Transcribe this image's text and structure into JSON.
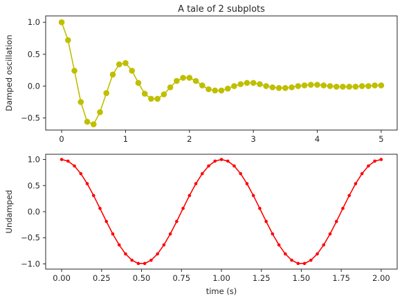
{
  "chart_data": [
    {
      "type": "line",
      "title": "A tale of 2 subplots",
      "xlabel": "",
      "ylabel": "Damped oscillation",
      "xlim": [
        -0.25,
        5.25
      ],
      "ylim": [
        -0.69,
        1.1
      ],
      "xticks": [
        0,
        1,
        2,
        3,
        4,
        5
      ],
      "xtick_labels": [
        "0",
        "1",
        "2",
        "3",
        "4",
        "5"
      ],
      "yticks": [
        -0.5,
        0.0,
        0.5,
        1.0
      ],
      "ytick_labels": [
        "−0.5",
        "0.0",
        "0.5",
        "1.0"
      ],
      "grid": false,
      "series": [
        {
          "color": "#bfbf00",
          "marker": "circle",
          "x": [
            0.0,
            0.1,
            0.2,
            0.3,
            0.4,
            0.5,
            0.6,
            0.7,
            0.8,
            0.9,
            1.0,
            1.1,
            1.2,
            1.3,
            1.4,
            1.5,
            1.6,
            1.7,
            1.8,
            1.9,
            2.0,
            2.1,
            2.2,
            2.3,
            2.4,
            2.5,
            2.6,
            2.7,
            2.8,
            2.9,
            3.0,
            3.1,
            3.2,
            3.3,
            3.4,
            3.5,
            3.6,
            3.7,
            3.8,
            3.9,
            4.0,
            4.1,
            4.2,
            4.3,
            4.4,
            4.5,
            4.6,
            4.7,
            4.8,
            4.9,
            5.0
          ],
          "y": [
            1.0,
            0.72,
            0.24,
            -0.25,
            -0.56,
            -0.6,
            -0.41,
            -0.11,
            0.18,
            0.34,
            0.36,
            0.24,
            0.05,
            -0.12,
            -0.2,
            -0.2,
            -0.13,
            -0.02,
            0.08,
            0.13,
            0.13,
            0.08,
            0.01,
            -0.05,
            -0.07,
            -0.07,
            -0.04,
            0.0,
            0.03,
            0.05,
            0.05,
            0.03,
            0.0,
            -0.02,
            -0.03,
            -0.03,
            -0.02,
            0.0,
            0.01,
            0.02,
            0.02,
            0.01,
            0.0,
            -0.01,
            -0.01,
            -0.01,
            -0.01,
            0.0,
            0.0,
            0.01,
            0.01
          ]
        }
      ]
    },
    {
      "type": "line",
      "title": "",
      "xlabel": "time (s)",
      "ylabel": "Undamped",
      "xlim": [
        -0.1,
        2.1
      ],
      "ylim": [
        -1.1,
        1.1
      ],
      "xticks": [
        0.0,
        0.25,
        0.5,
        0.75,
        1.0,
        1.25,
        1.5,
        1.75,
        2.0
      ],
      "xtick_labels": [
        "0.00",
        "0.25",
        "0.50",
        "0.75",
        "1.00",
        "1.25",
        "1.50",
        "1.75",
        "2.00"
      ],
      "yticks": [
        -1.0,
        -0.5,
        0.0,
        0.5,
        1.0
      ],
      "ytick_labels": [
        "−1.0",
        "−0.5",
        "0.0",
        "0.5",
        "1.0"
      ],
      "grid": false,
      "series": [
        {
          "color": "#ff0000",
          "marker": "dot",
          "x": [
            0.0,
            0.04,
            0.08,
            0.12,
            0.16,
            0.2,
            0.24,
            0.28,
            0.32,
            0.36,
            0.4,
            0.44,
            0.48,
            0.52,
            0.56,
            0.6,
            0.64,
            0.68,
            0.72,
            0.76,
            0.8,
            0.84,
            0.88,
            0.92,
            0.96,
            1.0,
            1.04,
            1.08,
            1.12,
            1.16,
            1.2,
            1.24,
            1.28,
            1.32,
            1.36,
            1.4,
            1.44,
            1.48,
            1.52,
            1.56,
            1.6,
            1.64,
            1.68,
            1.72,
            1.76,
            1.8,
            1.84,
            1.88,
            1.92,
            1.96,
            2.0
          ],
          "y": [
            1.0,
            0.969,
            0.876,
            0.729,
            0.536,
            0.309,
            0.063,
            -0.187,
            -0.426,
            -0.637,
            -0.809,
            -0.93,
            -0.992,
            -0.992,
            -0.93,
            -0.809,
            -0.637,
            -0.426,
            -0.187,
            0.063,
            0.309,
            0.536,
            0.729,
            0.876,
            0.969,
            1.0,
            0.969,
            0.876,
            0.729,
            0.536,
            0.309,
            0.063,
            -0.187,
            -0.426,
            -0.637,
            -0.809,
            -0.93,
            -0.992,
            -0.992,
            -0.93,
            -0.809,
            -0.637,
            -0.426,
            -0.187,
            0.063,
            0.309,
            0.536,
            0.729,
            0.876,
            0.969,
            1.0
          ]
        }
      ]
    }
  ]
}
